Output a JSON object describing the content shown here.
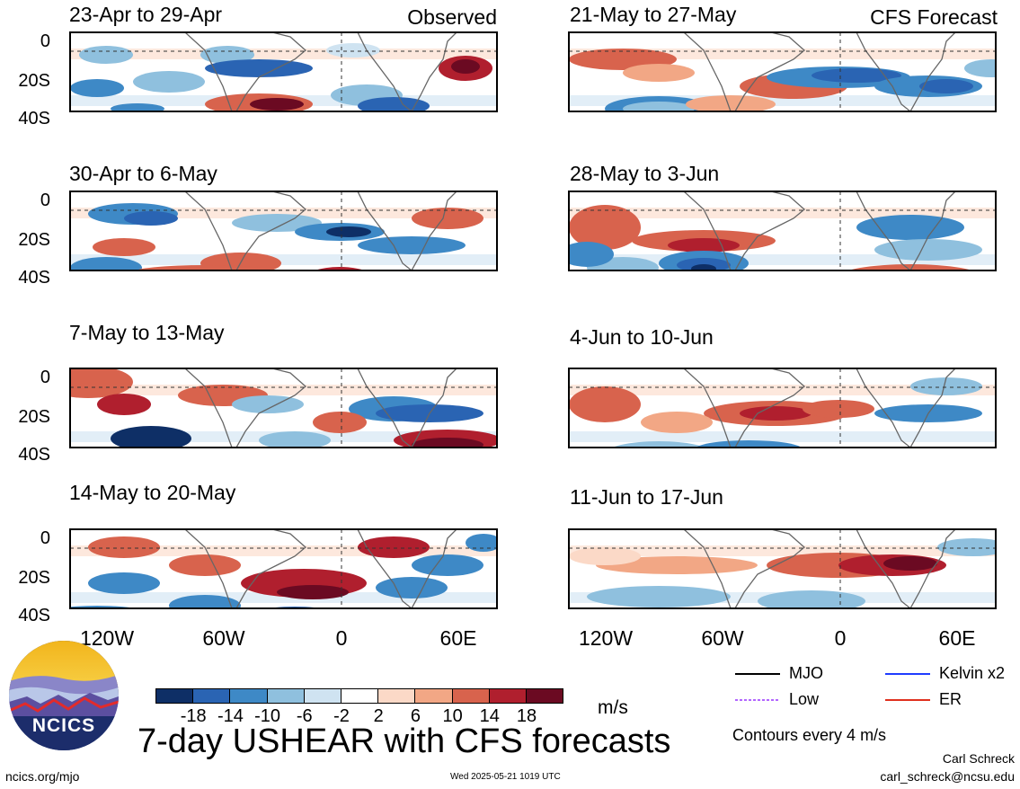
{
  "main_title": "7-day USHEAR with CFS forecasts",
  "units": "m/s",
  "contour_note": "Contours every 4 m/s",
  "footer": {
    "left": "ncics.org/mjo",
    "center": "Wed 2025-05-21 1019 UTC",
    "author": "Carl Schreck",
    "email": "carl_schreck@ncsu.edu"
  },
  "logo": {
    "text": "NCICS"
  },
  "column_tags": {
    "observed": "Observed",
    "forecast": "CFS Forecast"
  },
  "legend": [
    {
      "label": "MJO",
      "color": "#000000"
    },
    {
      "label": "Kelvin x2",
      "color": "#1f3cff"
    },
    {
      "label": "Low",
      "color": "#b266ff"
    },
    {
      "label": "ER",
      "color": "#e0301e"
    }
  ],
  "colorbar": {
    "colors": [
      "#0e2f66",
      "#2a64b3",
      "#3e89c6",
      "#8fc0de",
      "#cfe3f1",
      "#ffffff",
      "#fbd9c7",
      "#f2a785",
      "#d8634d",
      "#b01f2e",
      "#6b0a22"
    ],
    "labels": [
      "-18",
      "-14",
      "-10",
      "-6",
      "-2",
      "2",
      "6",
      "10",
      "14",
      "18"
    ]
  },
  "chart_data": {
    "type": "heatmap",
    "variable": "USHEAR",
    "units": "m/s",
    "x_tick_labels": [
      "120W",
      "60W",
      "0",
      "60E"
    ],
    "y_tick_labels": [
      "0",
      "20S",
      "40S"
    ],
    "panels": [
      {
        "title": "23-Apr to 29-Apr",
        "source": "Observed"
      },
      {
        "title": "30-Apr to 6-May",
        "source": "Observed"
      },
      {
        "title": "7-May to 13-May",
        "source": "Observed"
      },
      {
        "title": "14-May to 20-May",
        "source": "Observed"
      },
      {
        "title": "21-May to 27-May",
        "source": "CFS Forecast"
      },
      {
        "title": "28-May to 3-Jun",
        "source": "CFS Forecast"
      },
      {
        "title": "4-Jun to 10-Jun",
        "source": "CFS Forecast"
      },
      {
        "title": "11-Jun to 17-Jun",
        "source": "CFS Forecast"
      }
    ]
  }
}
